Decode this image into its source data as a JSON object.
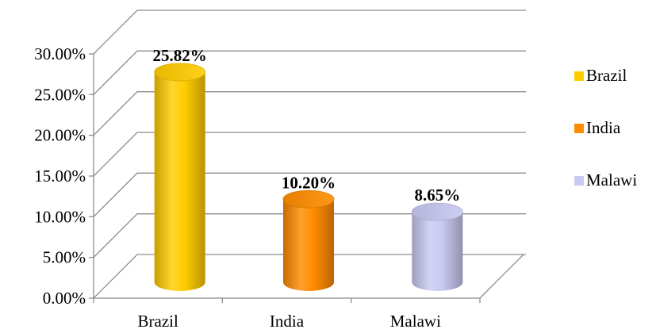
{
  "chart_data": {
    "type": "bar",
    "style": "3d-cylinder",
    "categories": [
      "Brazil",
      "India",
      "Malawi"
    ],
    "values": [
      25.82,
      10.2,
      8.65
    ],
    "data_labels": [
      "25.82%",
      "10.20%",
      "8.65%"
    ],
    "colors": [
      "#FFCC00",
      "#FF8C00",
      "#C9C9F2"
    ],
    "ylim": [
      0,
      30
    ],
    "yticks": [
      0,
      5,
      10,
      15,
      20,
      25,
      30
    ],
    "ytick_labels": [
      "0.00%",
      "5.00%",
      "10.00%",
      "15.00%",
      "20.00%",
      "25.00%",
      "30.00%"
    ],
    "grid": true,
    "legend": {
      "position": "right",
      "entries": [
        "Brazil",
        "India",
        "Malawi"
      ]
    }
  }
}
